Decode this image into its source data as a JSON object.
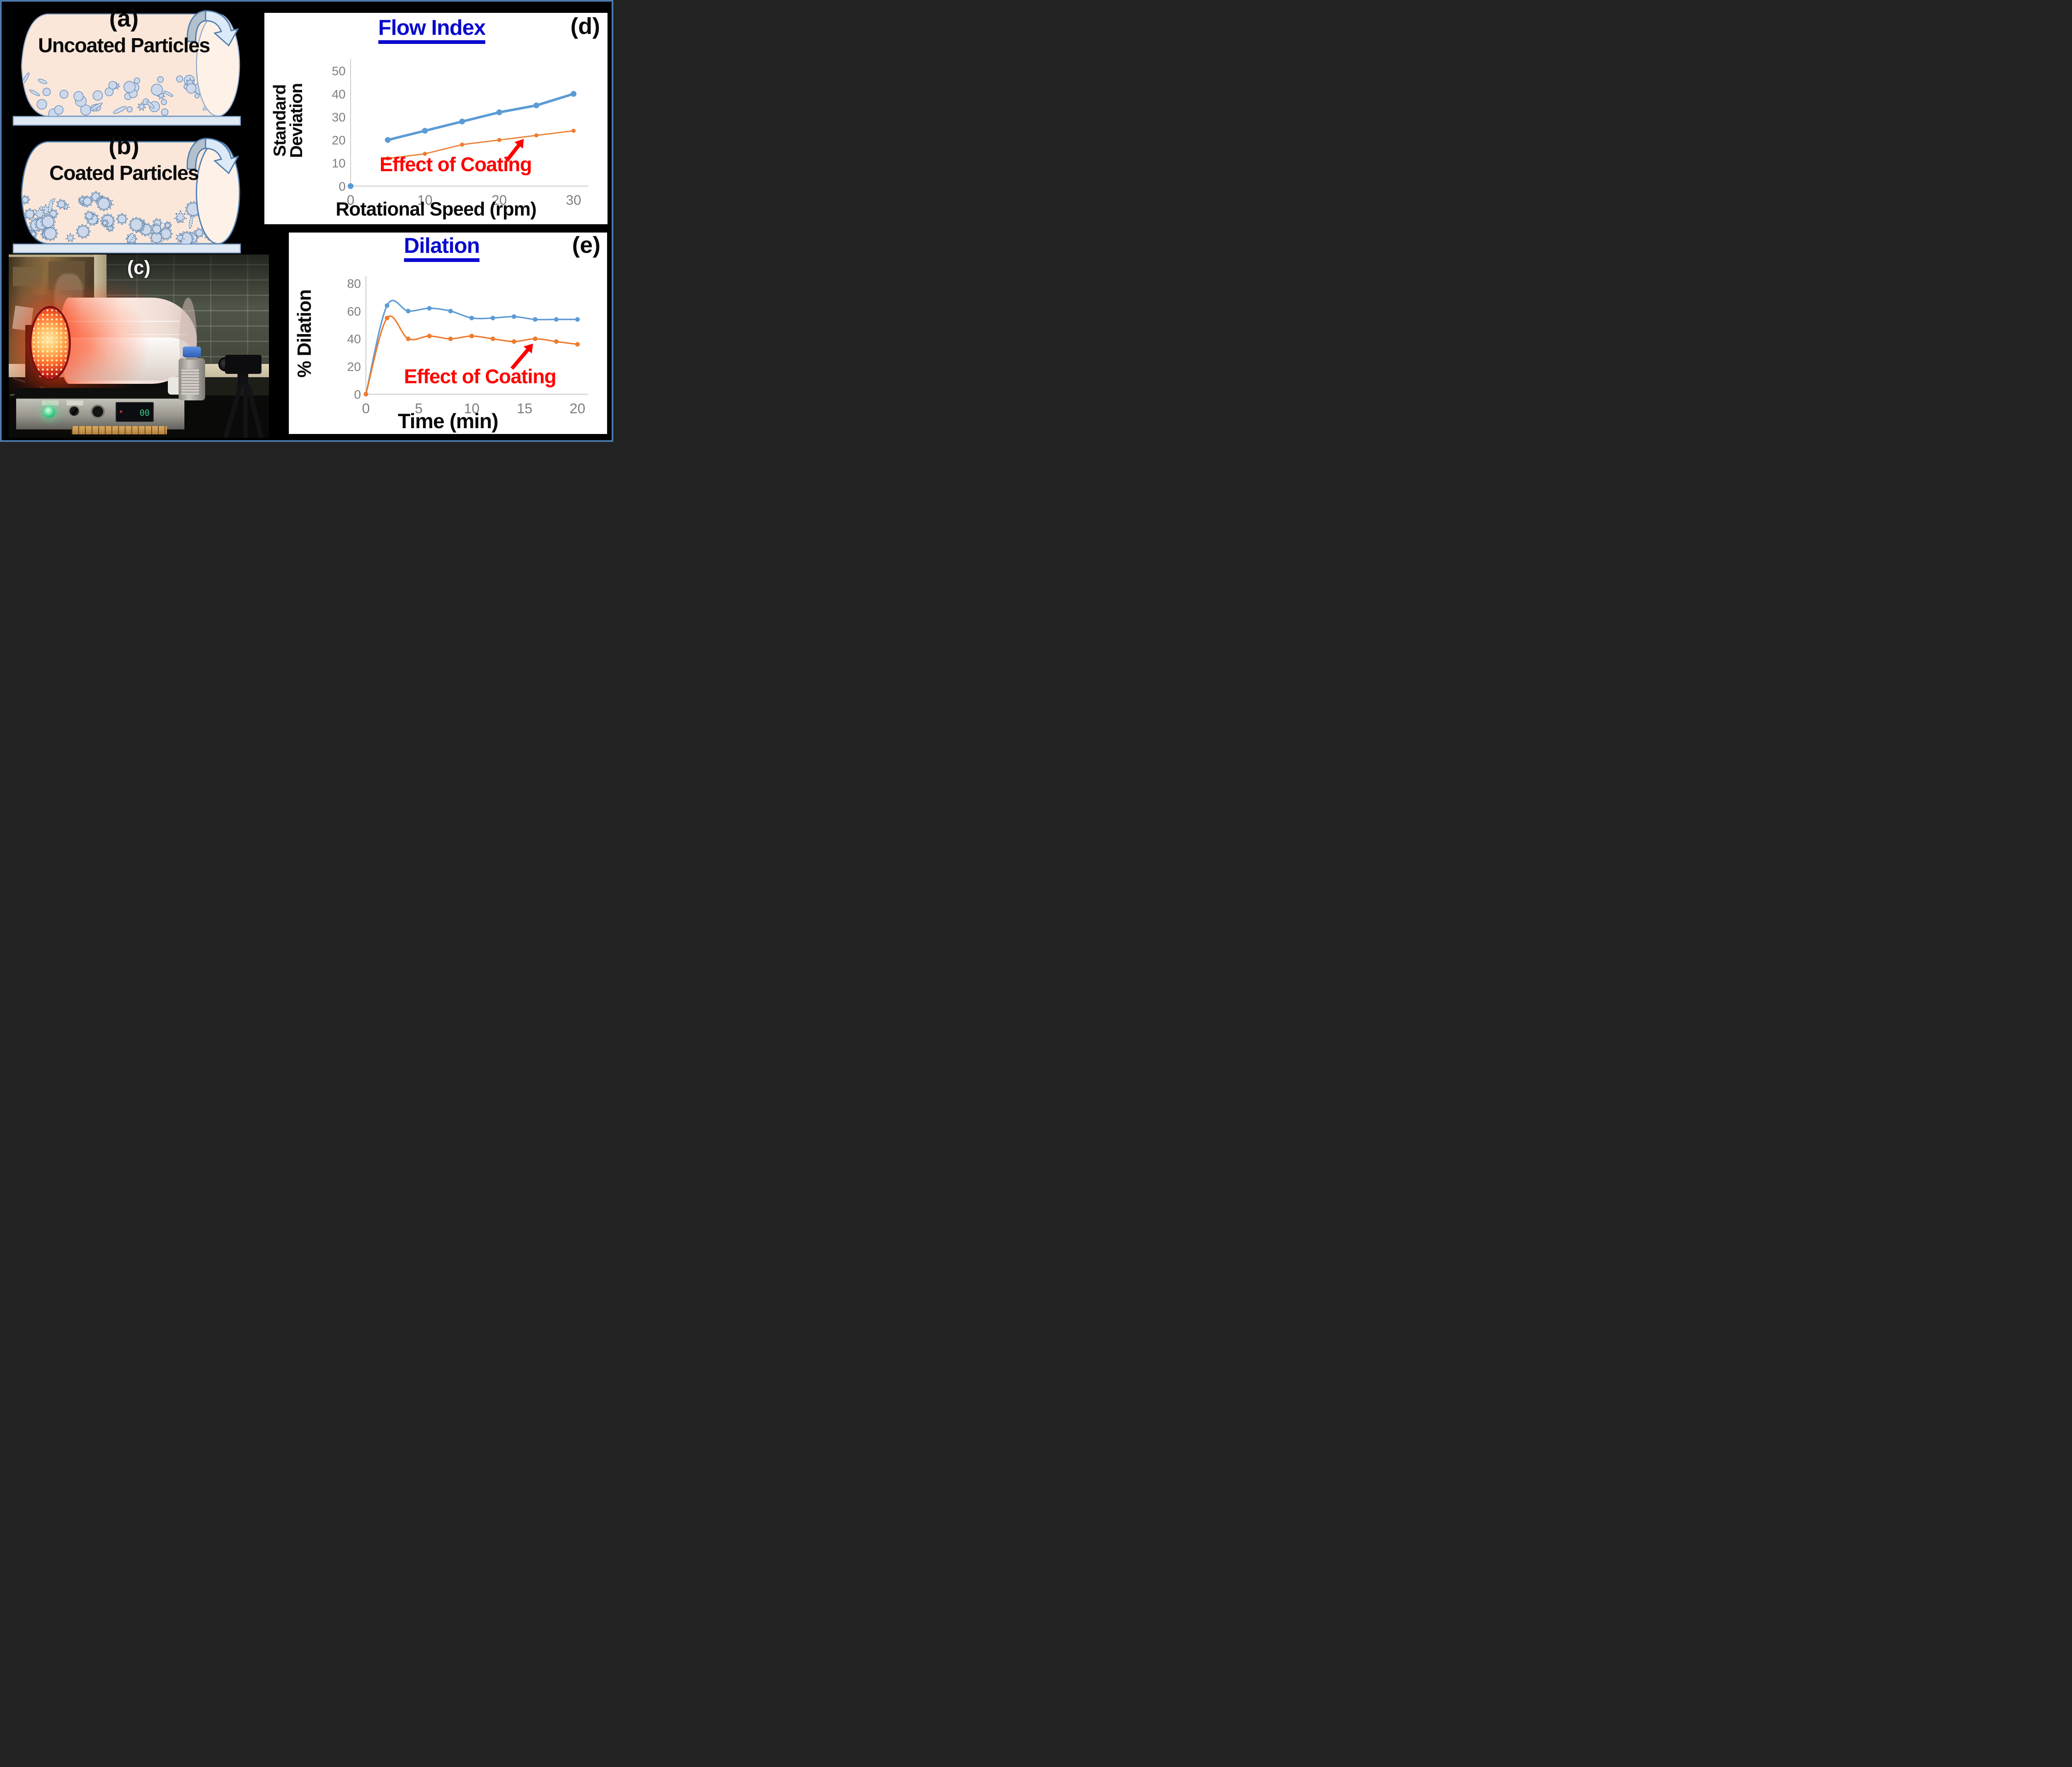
{
  "figure": {
    "border_color": "#4b79ab",
    "background_color": "#000000"
  },
  "panel_a": {
    "label": "(a)",
    "title": "Uncoated Particles"
  },
  "panel_b": {
    "label": "(b)",
    "title": "Coated Particles"
  },
  "panel_c": {
    "label": "(c)",
    "display_reading": "00"
  },
  "chart_data": [
    {
      "id": "flow_index",
      "type": "line",
      "title": "Flow Index",
      "panel_label": "(d)",
      "title_color": "#0a0ace",
      "xlabel": "Rotational Speed (rpm)",
      "ylabel": "Standard Deviation",
      "x_ticks": [
        0,
        10,
        20,
        30
      ],
      "y_ticks": [
        0,
        10,
        20,
        30,
        40,
        50
      ],
      "xlim": [
        0,
        32
      ],
      "ylim": [
        0,
        55
      ],
      "grid": false,
      "legend": "none",
      "tick_color": "#7f7f7f",
      "axis_color": "#c9c9c9",
      "series": [
        {
          "color": "#5B9BD5",
          "line_width": 0,
          "marker_radius": 7,
          "x": [
            0
          ],
          "y": [
            0
          ]
        },
        {
          "color": "#5B9BD5",
          "line_width": 6,
          "marker_radius": 7,
          "x": [
            5,
            10,
            15,
            20,
            25,
            30
          ],
          "y": [
            20,
            24,
            28,
            32,
            35,
            40
          ]
        },
        {
          "color": "#ED7D31",
          "line_width": 3,
          "marker_radius": 5,
          "x": [
            5,
            10,
            15,
            20,
            25,
            30
          ],
          "y": [
            12,
            14,
            18,
            20,
            22,
            24
          ]
        }
      ],
      "annotation": {
        "text": "Effect of Coating",
        "color": "#FF0000",
        "arrow_tail_data": [
          21.0,
          11.0
        ],
        "arrow_head_data": [
          23.3,
          20.5
        ]
      }
    },
    {
      "id": "dilation",
      "type": "line",
      "title": "Dilation",
      "panel_label": "(e)",
      "title_color": "#0a0ace",
      "xlabel": "Time (min)",
      "ylabel": "% Dilation",
      "x_ticks": [
        0,
        5,
        10,
        15,
        20
      ],
      "y_ticks": [
        0,
        20,
        40,
        60,
        80
      ],
      "xlim": [
        0,
        21
      ],
      "ylim": [
        0,
        85
      ],
      "grid": false,
      "legend": "none",
      "tick_color": "#7f7f7f",
      "axis_color": "#c9c9c9",
      "series": [
        {
          "color": "#5B9BD5",
          "line_width": 3.5,
          "marker_radius": 5.5,
          "x": [
            0,
            2,
            4,
            6,
            8,
            10,
            12,
            14,
            16,
            18,
            20
          ],
          "y": [
            0,
            64,
            60,
            62,
            60,
            55,
            55,
            56,
            54,
            54,
            54
          ]
        },
        {
          "color": "#ED7D31",
          "line_width": 3.5,
          "marker_radius": 5.5,
          "x": [
            0,
            2,
            4,
            6,
            8,
            10,
            12,
            14,
            16,
            18,
            20
          ],
          "y": [
            0,
            55,
            40,
            42,
            40,
            42,
            40,
            38,
            40,
            38,
            36
          ]
        }
      ],
      "annotation": {
        "text": "Effect of Coating",
        "color": "#FF0000",
        "arrow_tail_data": [
          13.8,
          18.5
        ],
        "arrow_head_data": [
          15.8,
          36.5
        ]
      }
    }
  ]
}
